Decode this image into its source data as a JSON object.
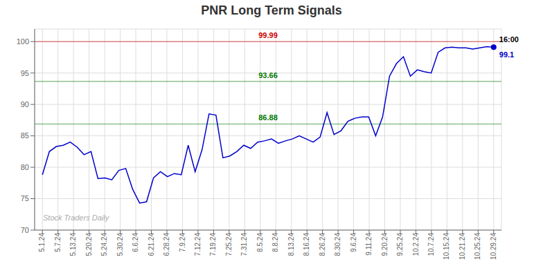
{
  "chart_data": {
    "type": "line",
    "title": "PNR Long Term Signals",
    "color": "#0000cc",
    "grid": true,
    "x": [
      0,
      0.4462,
      0.8923,
      1.3385,
      1.7846,
      2.2308,
      2.6769,
      3.1231,
      3.5692,
      4.0154,
      4.4615,
      4.9077,
      5.3538,
      5.8,
      6.2462,
      6.6923,
      7.1385,
      7.5846,
      8.0308,
      8.4769,
      8.9231,
      9.3692,
      9.8154,
      10.2615,
      10.7077,
      11.1538,
      11.6,
      12.0462,
      12.4923,
      12.9385,
      13.3846,
      13.8308,
      14.2769,
      14.7231,
      15.1692,
      15.6154,
      16.0615,
      16.5077,
      16.9538,
      17.4,
      17.8462,
      18.2923,
      18.7385,
      19.1846,
      19.6308,
      20.0769,
      20.5231,
      20.9692,
      21.4154,
      21.8615,
      22.3077,
      22.7538,
      23.2,
      23.6462,
      24.0923,
      24.5385,
      24.9846,
      25.4308,
      25.8769,
      26.3231,
      26.7692,
      27.2154,
      27.6615,
      28.1077,
      28.5538,
      29
    ],
    "values": [
      78.8,
      82.5,
      83.3,
      83.5,
      84.0,
      83.2,
      82.0,
      82.5,
      78.2,
      78.3,
      78.0,
      79.5,
      79.8,
      76.5,
      74.3,
      74.5,
      78.3,
      79.3,
      78.5,
      79.0,
      78.8,
      83.5,
      79.3,
      82.8,
      88.5,
      88.3,
      81.5,
      81.8,
      82.5,
      83.5,
      83.0,
      84.0,
      84.2,
      84.5,
      83.8,
      84.2,
      84.5,
      85.0,
      84.5,
      84.0,
      84.8,
      88.7,
      85.2,
      85.8,
      87.3,
      87.8,
      88.0,
      88.0,
      85.0,
      88.0,
      94.5,
      96.5,
      97.6,
      94.5,
      95.5,
      95.2,
      95.0,
      98.3,
      99.0,
      99.1,
      99.0,
      99.0,
      98.8,
      99.0,
      99.2,
      99.1
    ],
    "xlim": [
      -0.5,
      29.5
    ],
    "xticks": [
      {
        "value": 0,
        "label": "5.1.24"
      },
      {
        "value": 1,
        "label": "5.7.24"
      },
      {
        "value": 2,
        "label": "5.13.24"
      },
      {
        "value": 3,
        "label": "5.20.24"
      },
      {
        "value": 4,
        "label": "5.24.24"
      },
      {
        "value": 5,
        "label": "5.30.24"
      },
      {
        "value": 6,
        "label": "6.6.24"
      },
      {
        "value": 7,
        "label": "6.21.24"
      },
      {
        "value": 8,
        "label": "6.28.24"
      },
      {
        "value": 9,
        "label": "7.9.24"
      },
      {
        "value": 10,
        "label": "7.12.24"
      },
      {
        "value": 11,
        "label": "7.19.24"
      },
      {
        "value": 12,
        "label": "7.25.24"
      },
      {
        "value": 13,
        "label": "7.31.24"
      },
      {
        "value": 14,
        "label": "8.5.24"
      },
      {
        "value": 15,
        "label": "8.8.24"
      },
      {
        "value": 16,
        "label": "8.13.24"
      },
      {
        "value": 17,
        "label": "8.16.24"
      },
      {
        "value": 18,
        "label": "8.26.24"
      },
      {
        "value": 19,
        "label": "8.30.24"
      },
      {
        "value": 20,
        "label": "9.6.24"
      },
      {
        "value": 21,
        "label": "9.11.24"
      },
      {
        "value": 22,
        "label": "9.20.24"
      },
      {
        "value": 23,
        "label": "9.25.24"
      },
      {
        "value": 24,
        "label": "10.2.24"
      },
      {
        "value": 25,
        "label": "10.7.24"
      },
      {
        "value": 26,
        "label": "10.15.24"
      },
      {
        "value": 27,
        "label": "10.21.24"
      },
      {
        "value": 28,
        "label": "10.25.24"
      },
      {
        "value": 29,
        "label": "10.29.24"
      }
    ],
    "ylim": [
      70,
      102
    ],
    "yticks": [
      70,
      75,
      80,
      85,
      90,
      95,
      100
    ],
    "reference_lines": [
      {
        "y": 99.99,
        "label": "99.99",
        "color": "#cc0000"
      },
      {
        "y": 93.66,
        "label": "93.66",
        "color": "#007700"
      },
      {
        "y": 86.88,
        "label": "86.88",
        "color": "#007700"
      }
    ],
    "annotations": [
      {
        "text": "16:00",
        "x": 29,
        "y": 99.1
      },
      {
        "text": "99.1",
        "x": 29,
        "y": 99.1,
        "color": "#0000cc"
      }
    ],
    "watermark": "Stock Traders Daily"
  }
}
